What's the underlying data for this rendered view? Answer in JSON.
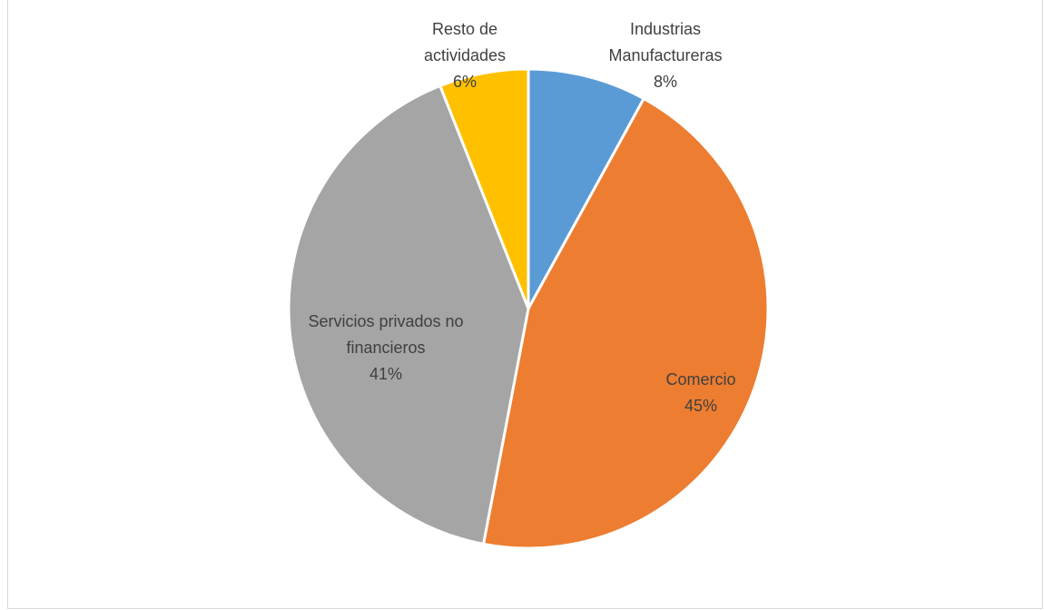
{
  "chart_data": {
    "type": "pie",
    "categories": [
      "Industrias Manufactureras",
      "Comercio",
      "Servicios privados no financieros",
      "Resto de actividades"
    ],
    "values": [
      8,
      45,
      41,
      6
    ],
    "value_labels": [
      "8%",
      "45%",
      "41%",
      "6%"
    ],
    "colors": [
      "#5b9bd5",
      "#ed7d31",
      "#a5a5a5",
      "#ffc000"
    ]
  }
}
